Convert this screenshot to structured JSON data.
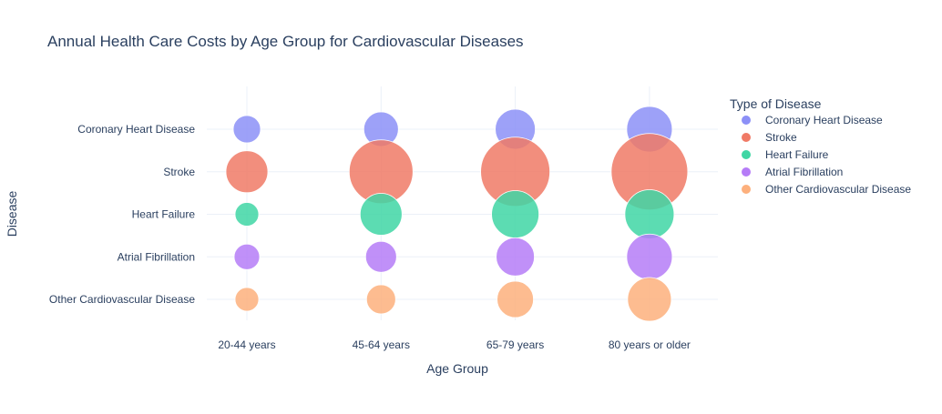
{
  "chart_data": {
    "type": "scatter",
    "title": "Annual Health Care Costs by Age Group for Cardiovascular Diseases",
    "xlabel": "Age Group",
    "ylabel": "Disease",
    "categories": [
      "20-44 years",
      "45-64 years",
      "65-79 years",
      "80 years or older"
    ],
    "y_categories": [
      "Coronary Heart Disease",
      "Stroke",
      "Heart Failure",
      "Atrial Fibrillation",
      "Other Cardiovascular Disease"
    ],
    "legend": {
      "title": "Type of Disease",
      "position": "right"
    },
    "grid": true,
    "marker_size_encodes": "annual cost (relative, estimated)",
    "series": [
      {
        "name": "Coronary Heart Disease",
        "color": "#8c90f7",
        "y": "Coronary Heart Disease",
        "sizes": [
          15,
          19,
          22,
          25
        ]
      },
      {
        "name": "Stroke",
        "color": "#f07a66",
        "y": "Stroke",
        "sizes": [
          23,
          35,
          38,
          42
        ]
      },
      {
        "name": "Heart Failure",
        "color": "#3fd6a4",
        "y": "Heart Failure",
        "sizes": [
          13,
          23,
          26,
          27
        ]
      },
      {
        "name": "Atrial Fibrillation",
        "color": "#b57cf7",
        "y": "Atrial Fibrillation",
        "sizes": [
          14,
          17,
          21,
          25
        ]
      },
      {
        "name": "Other Cardiovascular Disease",
        "color": "#fdb07d",
        "y": "Other Cardiovascular Disease",
        "sizes": [
          13,
          16,
          20,
          24
        ]
      }
    ]
  }
}
